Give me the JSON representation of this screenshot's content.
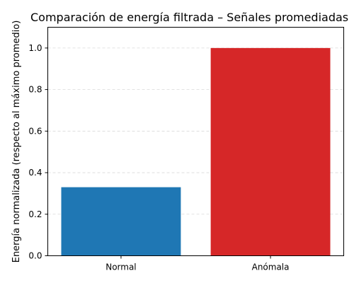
{
  "chart_data": {
    "type": "bar",
    "title": "Comparación de energía filtrada – Señales promediadas",
    "xlabel": "",
    "ylabel": "Energía normalizada (respecto al máximo promedio)",
    "categories": [
      "Normal",
      "Anómala"
    ],
    "values": [
      0.33,
      1.0
    ],
    "colors": [
      "#1f77b4",
      "#d62728"
    ],
    "ylim": [
      0,
      1.1
    ],
    "yticks": [
      0.0,
      0.2,
      0.4,
      0.6,
      0.8,
      1.0
    ],
    "ytick_labels": [
      "0.0",
      "0.2",
      "0.4",
      "0.6",
      "0.8",
      "1.0"
    ],
    "grid": true,
    "grid_axis": "y"
  }
}
